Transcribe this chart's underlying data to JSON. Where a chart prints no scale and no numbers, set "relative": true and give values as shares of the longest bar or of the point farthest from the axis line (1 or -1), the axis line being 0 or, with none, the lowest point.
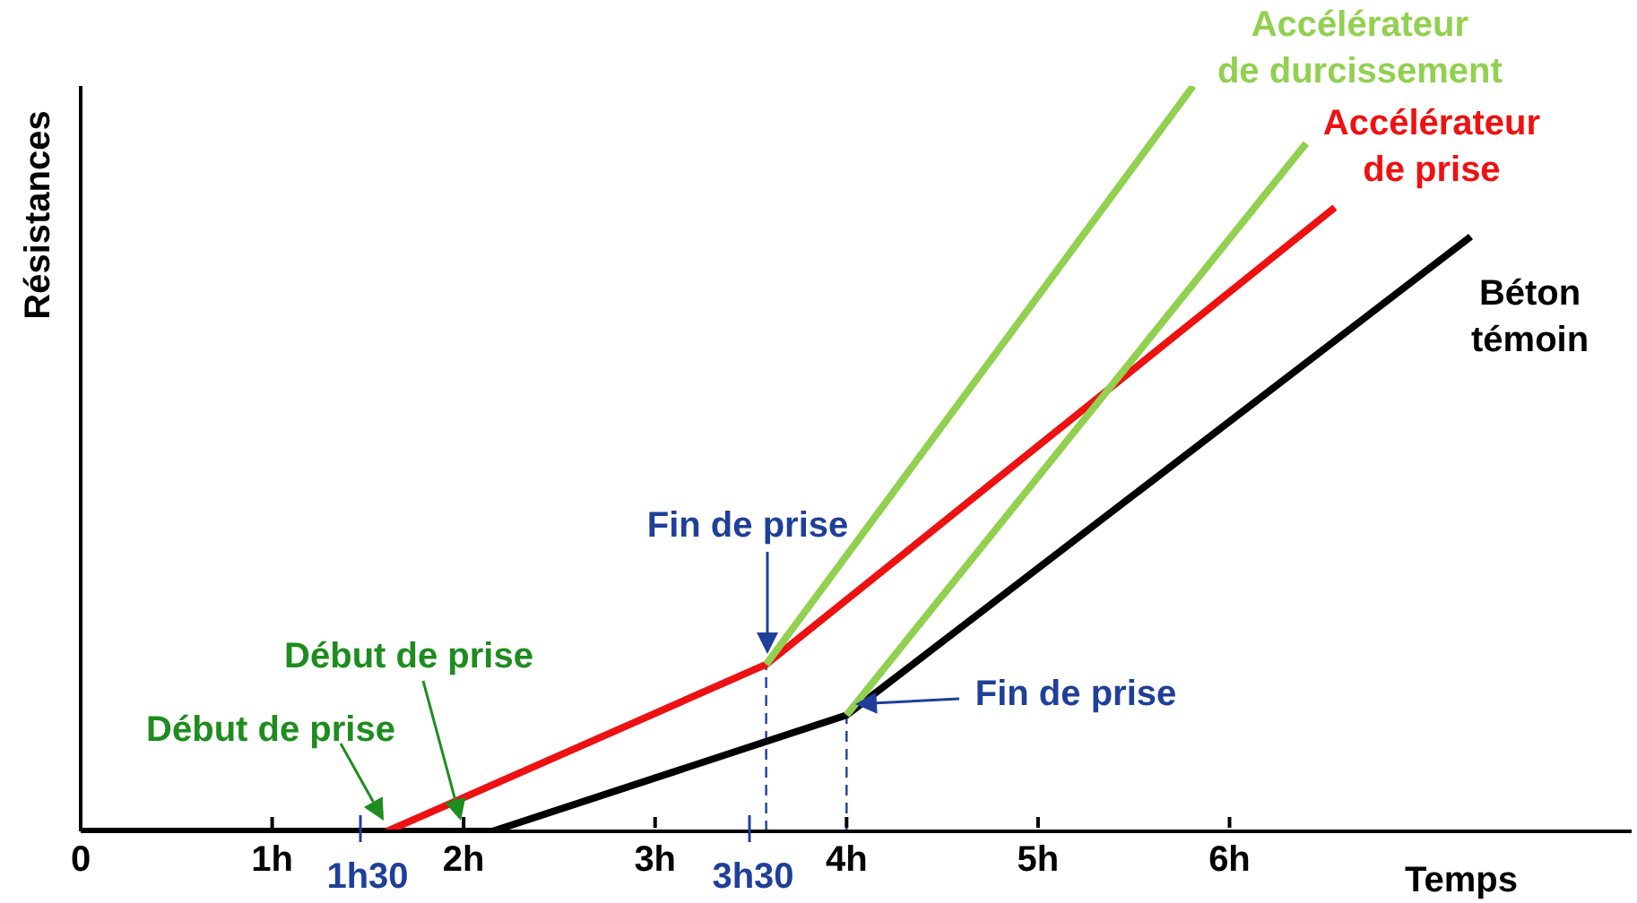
{
  "chart_data": {
    "type": "line",
    "relative": true,
    "xlabel": "Temps",
    "ylabel": "Résistances",
    "xlim": [
      0,
      8.1
    ],
    "xticks": [
      0,
      {
        "value": 1,
        "label": "1h"
      },
      {
        "value": 2,
        "label": "2h"
      },
      {
        "value": 3,
        "label": "3h"
      },
      {
        "value": 4,
        "label": "4h"
      },
      {
        "value": 5,
        "label": "5h"
      },
      {
        "value": 6,
        "label": "6h"
      }
    ],
    "series": [
      {
        "name": "Accélérateur de durcissement",
        "color": "#92d050",
        "x": [
          3.58,
          5.81
        ],
        "values": [
          0.224,
          1
        ]
      },
      {
        "color": "#92d050",
        "x": [
          4,
          6.4
        ],
        "values": [
          0.156,
          0.923
        ]
      },
      {
        "name": "Accélérateur de prise",
        "color": "#ee1111",
        "x": [
          1.6,
          3.58,
          6.55
        ],
        "values": [
          0,
          0.224,
          0.837
        ]
      },
      {
        "name": "Béton témoin",
        "color": "#000000",
        "x": [
          0,
          2.15,
          4,
          7.26
        ],
        "values": [
          0,
          0,
          0.156,
          0.798
        ]
      }
    ],
    "ref_lines": [
      {
        "axis": "x",
        "value": 3.58,
        "color": "#1f3f99",
        "line_style": "dashed"
      },
      {
        "axis": "x",
        "value": 4,
        "color": "#1f3f99",
        "line_style": "dashed"
      }
    ],
    "annotations": [
      "Début de prise",
      "Début de prise",
      "Fin de prise",
      "Fin de prise",
      "1h30",
      "3h30"
    ],
    "grid": false,
    "marker": "none",
    "line_style": "solid"
  }
}
